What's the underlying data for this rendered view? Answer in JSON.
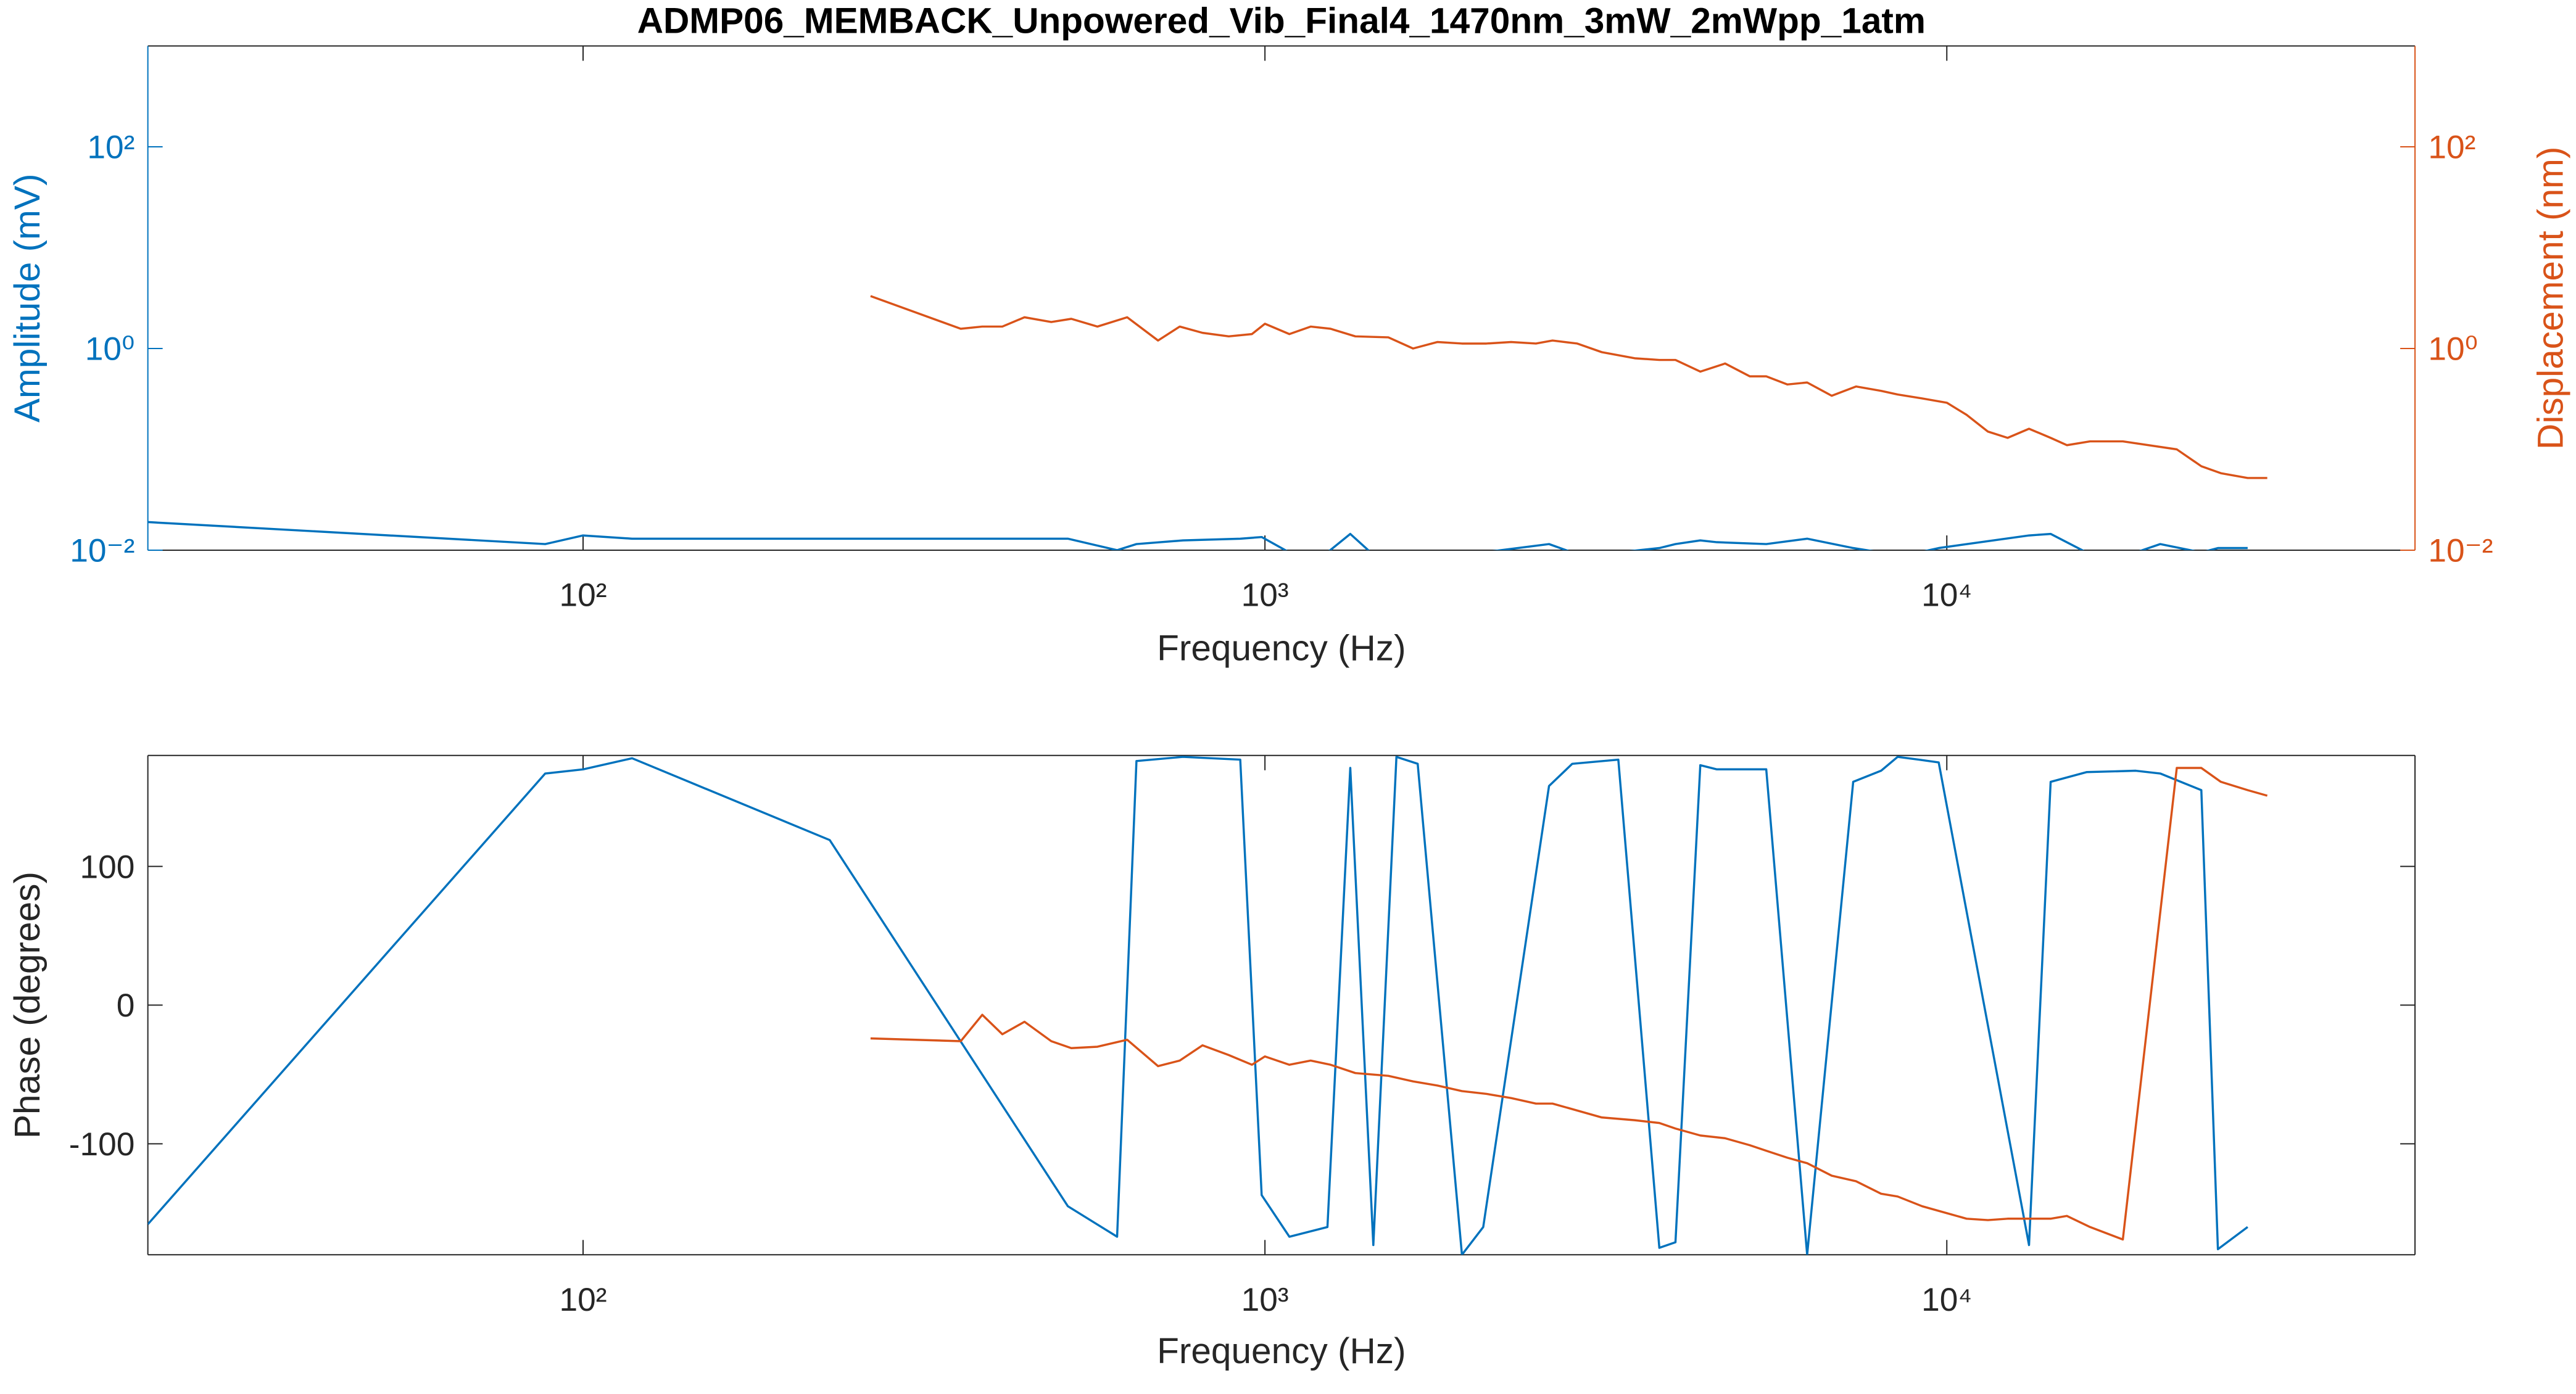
{
  "chart_data": [
    {
      "type": "line",
      "title": "ADMP06_MEMBACK_Unpowered_Vib_Final4_1470nm_3mW_2mWpp_1atm",
      "xlabel": "Frequency (Hz)",
      "ylabel": "Amplitude (mV)",
      "y2label": "Displacement (nm)",
      "xscale": "log",
      "yscale": "log",
      "y2scale": "log",
      "xlim": [
        23,
        48600
      ],
      "ylim": [
        0.01,
        1000
      ],
      "y2lim": [
        0.01,
        1000
      ],
      "xticks": [
        {
          "value": 100,
          "label": "10²"
        },
        {
          "value": 1000,
          "label": "10³"
        },
        {
          "value": 10000,
          "label": "10⁴"
        }
      ],
      "yticks": [
        {
          "value": 0.01,
          "label": "10⁻²"
        },
        {
          "value": 1,
          "label": "10⁰"
        },
        {
          "value": 100,
          "label": "10²"
        }
      ],
      "y2ticks": [
        {
          "value": 0.01,
          "label": "10⁻²"
        },
        {
          "value": 1,
          "label": "10⁰"
        },
        {
          "value": 100,
          "label": "10²"
        }
      ],
      "series": [
        {
          "color": "#0072BD",
          "x": [
            23,
            88,
            100,
            118,
            230,
            514,
            607,
            648,
            758,
            920,
            989,
            1086,
            1235,
            1334,
            1442,
            1559,
            1675,
            1945,
            2090,
            2610,
            2823,
            3298,
            3788,
            4000,
            4350,
            4600,
            5435,
            6240,
            7290,
            8010,
            8470,
            9100,
            9730,
            13200,
            14200,
            16030,
            18930,
            20560,
            23620,
            24980,
            27620
          ],
          "values": [
            0.019,
            0.0115,
            0.014,
            0.013,
            0.013,
            0.013,
            0.01,
            0.0115,
            0.0125,
            0.013,
            0.0135,
            0.0095,
            0.0095,
            0.0145,
            0.009,
            0.0095,
            0.0095,
            0.009,
            0.0095,
            0.0115,
            0.0095,
            0.0095,
            0.0105,
            0.0115,
            0.0125,
            0.012,
            0.0115,
            0.013,
            0.0105,
            0.0095,
            0.009,
            0.0095,
            0.0105,
            0.014,
            0.0145,
            0.0095,
            0.0095,
            0.0115,
            0.0095,
            0.0105,
            0.0105
          ]
        },
        {
          "color": "#D95319",
          "axis": "y2",
          "x": [
            264,
            358,
            385,
            412,
            444,
            486,
            520,
            568,
            628,
            697,
            750,
            810,
            885,
            957,
            1000,
            1086,
            1167,
            1248,
            1357,
            1517,
            1649,
            1791,
            1945,
            2113,
            2296,
            2497,
            2641,
            2871,
            3119,
            3486,
            3788,
            4000,
            4350,
            4730,
            5140,
            5435,
            5835,
            6240,
            6780,
            7360,
            8010,
            8470,
            9200,
            10000,
            10690,
            11490,
            12280,
            13200,
            14200,
            15000,
            16220,
            18120,
            21740,
            23620,
            25230,
            27620,
            29510
          ],
          "values": [
            3.31,
            1.57,
            1.65,
            1.65,
            2.04,
            1.83,
            1.97,
            1.65,
            2.04,
            1.2,
            1.65,
            1.43,
            1.32,
            1.39,
            1.76,
            1.39,
            1.65,
            1.57,
            1.32,
            1.29,
            1.0,
            1.16,
            1.12,
            1.12,
            1.16,
            1.12,
            1.2,
            1.12,
            0.92,
            0.8,
            0.77,
            0.77,
            0.59,
            0.71,
            0.53,
            0.53,
            0.44,
            0.46,
            0.34,
            0.42,
            0.38,
            0.35,
            0.32,
            0.29,
            0.22,
            0.15,
            0.13,
            0.16,
            0.13,
            0.11,
            0.12,
            0.12,
            0.1,
            0.068,
            0.058,
            0.052,
            0.052
          ]
        }
      ]
    },
    {
      "type": "line",
      "xlabel": "Frequency (Hz)",
      "ylabel": "Phase (degrees)",
      "xscale": "log",
      "xlim": [
        23,
        48600
      ],
      "ylim": [
        -180,
        180
      ],
      "xticks": [
        {
          "value": 100,
          "label": "10²"
        },
        {
          "value": 1000,
          "label": "10³"
        },
        {
          "value": 10000,
          "label": "10⁴"
        }
      ],
      "yticks": [
        -100,
        0,
        100
      ],
      "series": [
        {
          "color": "#0072BD",
          "x": [
            23,
            88,
            100,
            118,
            230,
            514,
            607,
            648,
            758,
            920,
            989,
            1086,
            1235,
            1334,
            1442,
            1559,
            1675,
            1945,
            2090,
            2610,
            2823,
            3298,
            3788,
            4000,
            4350,
            4600,
            5435,
            6240,
            7290,
            8010,
            8470,
            9100,
            9730,
            13200,
            14200,
            16030,
            18930,
            20560,
            23620,
            24980,
            27620
          ],
          "values": [
            -158,
            167,
            170,
            178,
            119,
            -145,
            -167,
            176,
            179,
            177,
            -137,
            -167,
            -160,
            171,
            -173,
            179,
            174,
            -180,
            -160,
            158,
            174,
            177,
            -175,
            -171,
            173,
            170,
            170,
            -180,
            161,
            169,
            179,
            177,
            175,
            -173,
            161,
            168,
            169,
            167,
            155,
            -176,
            -160
          ]
        },
        {
          "color": "#D95319",
          "x": [
            264,
            358,
            385,
            412,
            444,
            486,
            520,
            568,
            628,
            697,
            750,
            810,
            885,
            957,
            1000,
            1086,
            1167,
            1248,
            1357,
            1517,
            1649,
            1791,
            1945,
            2113,
            2296,
            2497,
            2641,
            2871,
            3119,
            3486,
            3788,
            4000,
            4350,
            4730,
            5140,
            5435,
            5835,
            6240,
            6780,
            7360,
            8010,
            8470,
            9200,
            10000,
            10690,
            11490,
            12280,
            13200,
            14200,
            15000,
            16220,
            18120,
            21740,
            23620,
            25230,
            27620,
            29510
          ],
          "values": [
            -24,
            -26,
            -7,
            -21,
            -12,
            -26,
            -31,
            -30,
            -25,
            -44,
            -40,
            -29,
            -36,
            -43,
            -37,
            -43,
            -40,
            -43,
            -49,
            -51,
            -55,
            -58,
            -62,
            -64,
            -67,
            -71,
            -71,
            -76,
            -81,
            -83,
            -85,
            -89,
            -94,
            -96,
            -101,
            -105,
            -110,
            -114,
            -123,
            -127,
            -136,
            -138,
            -145,
            -150,
            -154,
            -155,
            -154,
            -154,
            -154,
            -152,
            -160,
            -169,
            171,
            171,
            161,
            155,
            151
          ]
        }
      ]
    }
  ]
}
